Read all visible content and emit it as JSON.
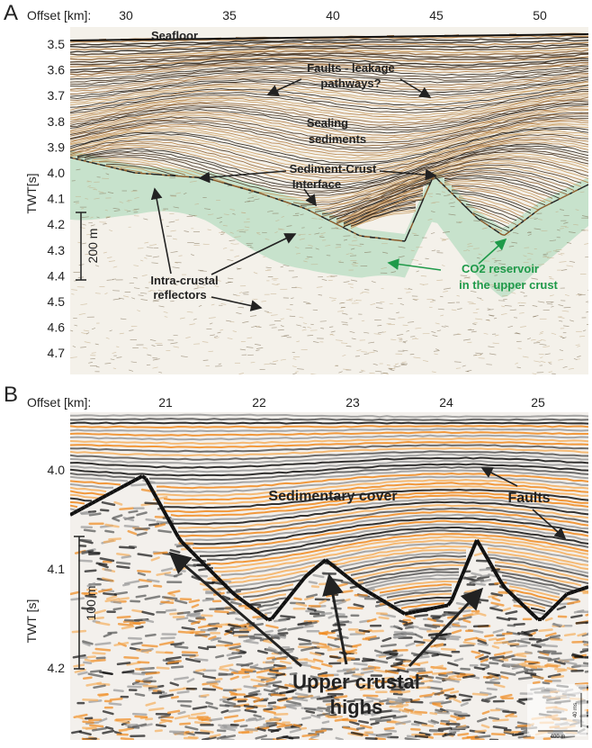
{
  "panels": [
    {
      "label": "A",
      "x_axis_label": "Offset [km]:",
      "x_ticks": [
        "30",
        "35",
        "40",
        "45",
        "50"
      ],
      "y_axis_label": "TWT[s]",
      "y_ticks": [
        "3.5",
        "3.6",
        "3.7",
        "3.8",
        "3.9",
        "4.0",
        "4.1",
        "4.2",
        "4.3",
        "4.4",
        "4.5",
        "4.6",
        "4.7"
      ],
      "scale_bar": "200 m",
      "annotations": [
        "Seafloor",
        "Faults - leakage",
        "pathways?",
        "Sealing",
        "sediments",
        "Sediment-Crust",
        "Interface",
        "Intra-crustal",
        "reflectors",
        "CO2 reservoir",
        "in the upper crust"
      ]
    },
    {
      "label": "B",
      "x_axis_label": "Offset [km]:",
      "x_ticks": [
        "21",
        "22",
        "23",
        "24",
        "25"
      ],
      "y_axis_label": "TWT [s]",
      "y_ticks": [
        "4.0",
        "4.1",
        "4.2"
      ],
      "scale_bar": "100 m",
      "small_scale_x": "400 m",
      "small_scale_y": "40 ms",
      "annotations": [
        "Sedimentary cover",
        "Faults",
        "Upper crustal",
        "highs"
      ]
    }
  ]
}
